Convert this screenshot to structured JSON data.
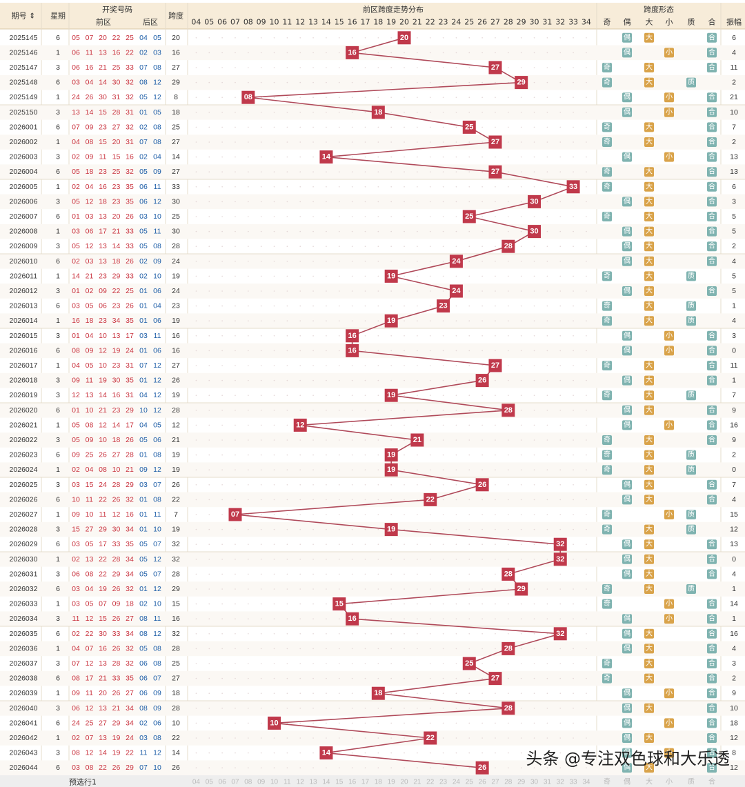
{
  "header": {
    "issue": "期号",
    "weekday": "星期",
    "draw": "开奖号码",
    "front": "前区",
    "back": "后区",
    "span": "跨度",
    "trend": "前区跨度走势分布",
    "form": "跨度形态",
    "form_cols": [
      "奇",
      "偶",
      "大",
      "小",
      "质",
      "合"
    ],
    "amplitude": "振幅"
  },
  "footer": {
    "label": "预选行1"
  },
  "watermark": "头条 @专注双色球和大乐透",
  "colors": {
    "node": "#c0394b",
    "line": "#b04a5a",
    "odd": "#7fb3b0",
    "even": "#7fb3b0",
    "big": "#d9a34a",
    "small": "#d9a34a",
    "prime": "#7fb3b0",
    "composite": "#7fb3b0"
  },
  "chart_data": {
    "type": "table",
    "span_columns": [
      "04",
      "05",
      "06",
      "07",
      "08",
      "09",
      "10",
      "11",
      "12",
      "13",
      "14",
      "15",
      "16",
      "17",
      "18",
      "19",
      "20",
      "21",
      "22",
      "23",
      "24",
      "25",
      "26",
      "27",
      "28",
      "29",
      "30",
      "31",
      "32",
      "33",
      "34"
    ],
    "rows": [
      {
        "issue": "2025145",
        "week": "6",
        "front": [
          "05",
          "07",
          "20",
          "22",
          "25"
        ],
        "back": [
          "04",
          "05"
        ],
        "span": 20,
        "amp": "6"
      },
      {
        "issue": "2025146",
        "week": "1",
        "front": [
          "06",
          "11",
          "13",
          "16",
          "22"
        ],
        "back": [
          "02",
          "03"
        ],
        "span": 16,
        "amp": "4"
      },
      {
        "issue": "2025147",
        "week": "3",
        "front": [
          "06",
          "16",
          "21",
          "25",
          "33"
        ],
        "back": [
          "07",
          "08"
        ],
        "span": 27,
        "amp": "11"
      },
      {
        "issue": "2025148",
        "week": "6",
        "front": [
          "03",
          "04",
          "14",
          "30",
          "32"
        ],
        "back": [
          "08",
          "12"
        ],
        "span": 29,
        "amp": "2"
      },
      {
        "issue": "2025149",
        "week": "1",
        "front": [
          "24",
          "26",
          "30",
          "31",
          "32"
        ],
        "back": [
          "05",
          "12"
        ],
        "span": 8,
        "amp": "21"
      },
      {
        "issue": "2025150",
        "week": "3",
        "front": [
          "13",
          "14",
          "15",
          "28",
          "31"
        ],
        "back": [
          "01",
          "05"
        ],
        "span": 18,
        "amp": "10"
      },
      {
        "issue": "2026001",
        "week": "6",
        "front": [
          "07",
          "09",
          "23",
          "27",
          "32"
        ],
        "back": [
          "02",
          "08"
        ],
        "span": 25,
        "amp": "7"
      },
      {
        "issue": "2026002",
        "week": "1",
        "front": [
          "04",
          "08",
          "15",
          "20",
          "31"
        ],
        "back": [
          "07",
          "08"
        ],
        "span": 27,
        "amp": "2"
      },
      {
        "issue": "2026003",
        "week": "3",
        "front": [
          "02",
          "09",
          "11",
          "15",
          "16"
        ],
        "back": [
          "02",
          "04"
        ],
        "span": 14,
        "amp": "13"
      },
      {
        "issue": "2026004",
        "week": "6",
        "front": [
          "05",
          "18",
          "23",
          "25",
          "32"
        ],
        "back": [
          "05",
          "09"
        ],
        "span": 27,
        "amp": "13"
      },
      {
        "issue": "2026005",
        "week": "1",
        "front": [
          "02",
          "04",
          "16",
          "23",
          "35"
        ],
        "back": [
          "06",
          "11"
        ],
        "span": 33,
        "amp": "6"
      },
      {
        "issue": "2026006",
        "week": "3",
        "front": [
          "05",
          "12",
          "18",
          "23",
          "35"
        ],
        "back": [
          "06",
          "12"
        ],
        "span": 30,
        "amp": "3"
      },
      {
        "issue": "2026007",
        "week": "6",
        "front": [
          "01",
          "03",
          "13",
          "20",
          "26"
        ],
        "back": [
          "03",
          "10"
        ],
        "span": 25,
        "amp": "5"
      },
      {
        "issue": "2026008",
        "week": "1",
        "front": [
          "03",
          "06",
          "17",
          "21",
          "33"
        ],
        "back": [
          "05",
          "11"
        ],
        "span": 30,
        "amp": "5"
      },
      {
        "issue": "2026009",
        "week": "3",
        "front": [
          "05",
          "12",
          "13",
          "14",
          "33"
        ],
        "back": [
          "05",
          "08"
        ],
        "span": 28,
        "amp": "2"
      },
      {
        "issue": "2026010",
        "week": "6",
        "front": [
          "02",
          "03",
          "13",
          "18",
          "26"
        ],
        "back": [
          "02",
          "09"
        ],
        "span": 24,
        "amp": "4"
      },
      {
        "issue": "2026011",
        "week": "1",
        "front": [
          "14",
          "21",
          "23",
          "29",
          "33"
        ],
        "back": [
          "02",
          "10"
        ],
        "span": 19,
        "amp": "5"
      },
      {
        "issue": "2026012",
        "week": "3",
        "front": [
          "01",
          "02",
          "09",
          "22",
          "25"
        ],
        "back": [
          "01",
          "06"
        ],
        "span": 24,
        "amp": "5"
      },
      {
        "issue": "2026013",
        "week": "6",
        "front": [
          "03",
          "05",
          "06",
          "23",
          "26"
        ],
        "back": [
          "01",
          "04"
        ],
        "span": 23,
        "amp": "1"
      },
      {
        "issue": "2026014",
        "week": "1",
        "front": [
          "16",
          "18",
          "23",
          "34",
          "35"
        ],
        "back": [
          "01",
          "06"
        ],
        "span": 19,
        "amp": "4"
      },
      {
        "issue": "2026015",
        "week": "3",
        "front": [
          "01",
          "04",
          "10",
          "13",
          "17"
        ],
        "back": [
          "03",
          "11"
        ],
        "span": 16,
        "amp": "3"
      },
      {
        "issue": "2026016",
        "week": "6",
        "front": [
          "08",
          "09",
          "12",
          "19",
          "24"
        ],
        "back": [
          "01",
          "06"
        ],
        "span": 16,
        "amp": "0"
      },
      {
        "issue": "2026017",
        "week": "1",
        "front": [
          "04",
          "05",
          "10",
          "23",
          "31"
        ],
        "back": [
          "07",
          "12"
        ],
        "span": 27,
        "amp": "11"
      },
      {
        "issue": "2026018",
        "week": "3",
        "front": [
          "09",
          "11",
          "19",
          "30",
          "35"
        ],
        "back": [
          "01",
          "12"
        ],
        "span": 26,
        "amp": "1"
      },
      {
        "issue": "2026019",
        "week": "3",
        "front": [
          "12",
          "13",
          "14",
          "16",
          "31"
        ],
        "back": [
          "04",
          "12"
        ],
        "span": 19,
        "amp": "7"
      },
      {
        "issue": "2026020",
        "week": "6",
        "front": [
          "01",
          "10",
          "21",
          "23",
          "29"
        ],
        "back": [
          "10",
          "12"
        ],
        "span": 28,
        "amp": "9"
      },
      {
        "issue": "2026021",
        "week": "1",
        "front": [
          "05",
          "08",
          "12",
          "14",
          "17"
        ],
        "back": [
          "04",
          "05"
        ],
        "span": 12,
        "amp": "16"
      },
      {
        "issue": "2026022",
        "week": "3",
        "front": [
          "05",
          "09",
          "10",
          "18",
          "26"
        ],
        "back": [
          "05",
          "06"
        ],
        "span": 21,
        "amp": "9"
      },
      {
        "issue": "2026023",
        "week": "6",
        "front": [
          "09",
          "25",
          "26",
          "27",
          "28"
        ],
        "back": [
          "01",
          "08"
        ],
        "span": 19,
        "amp": "2"
      },
      {
        "issue": "2026024",
        "week": "1",
        "front": [
          "02",
          "04",
          "08",
          "10",
          "21"
        ],
        "back": [
          "09",
          "12"
        ],
        "span": 19,
        "amp": "0"
      },
      {
        "issue": "2026025",
        "week": "3",
        "front": [
          "03",
          "15",
          "24",
          "28",
          "29"
        ],
        "back": [
          "03",
          "07"
        ],
        "span": 26,
        "amp": "7"
      },
      {
        "issue": "2026026",
        "week": "6",
        "front": [
          "10",
          "11",
          "22",
          "26",
          "32"
        ],
        "back": [
          "01",
          "08"
        ],
        "span": 22,
        "amp": "4"
      },
      {
        "issue": "2026027",
        "week": "1",
        "front": [
          "09",
          "10",
          "11",
          "12",
          "16"
        ],
        "back": [
          "01",
          "11"
        ],
        "span": 7,
        "amp": "15"
      },
      {
        "issue": "2026028",
        "week": "3",
        "front": [
          "15",
          "27",
          "29",
          "30",
          "34"
        ],
        "back": [
          "01",
          "10"
        ],
        "span": 19,
        "amp": "12"
      },
      {
        "issue": "2026029",
        "week": "6",
        "front": [
          "03",
          "05",
          "17",
          "33",
          "35"
        ],
        "back": [
          "05",
          "07"
        ],
        "span": 32,
        "amp": "13"
      },
      {
        "issue": "2026030",
        "week": "1",
        "front": [
          "02",
          "13",
          "22",
          "28",
          "34"
        ],
        "back": [
          "05",
          "12"
        ],
        "span": 32,
        "amp": "0"
      },
      {
        "issue": "2026031",
        "week": "3",
        "front": [
          "06",
          "08",
          "22",
          "29",
          "34"
        ],
        "back": [
          "05",
          "07"
        ],
        "span": 28,
        "amp": "4"
      },
      {
        "issue": "2026032",
        "week": "6",
        "front": [
          "03",
          "04",
          "19",
          "26",
          "32"
        ],
        "back": [
          "01",
          "12"
        ],
        "span": 29,
        "amp": "1"
      },
      {
        "issue": "2026033",
        "week": "1",
        "front": [
          "03",
          "05",
          "07",
          "09",
          "18"
        ],
        "back": [
          "02",
          "10"
        ],
        "span": 15,
        "amp": "14"
      },
      {
        "issue": "2026034",
        "week": "3",
        "front": [
          "11",
          "12",
          "15",
          "26",
          "27"
        ],
        "back": [
          "08",
          "11"
        ],
        "span": 16,
        "amp": "1"
      },
      {
        "issue": "2026035",
        "week": "6",
        "front": [
          "02",
          "22",
          "30",
          "33",
          "34"
        ],
        "back": [
          "08",
          "12"
        ],
        "span": 32,
        "amp": "16"
      },
      {
        "issue": "2026036",
        "week": "1",
        "front": [
          "04",
          "07",
          "16",
          "26",
          "32"
        ],
        "back": [
          "05",
          "08"
        ],
        "span": 28,
        "amp": "4"
      },
      {
        "issue": "2026037",
        "week": "3",
        "front": [
          "07",
          "12",
          "13",
          "28",
          "32"
        ],
        "back": [
          "06",
          "08"
        ],
        "span": 25,
        "amp": "3"
      },
      {
        "issue": "2026038",
        "week": "6",
        "front": [
          "08",
          "17",
          "21",
          "33",
          "35"
        ],
        "back": [
          "06",
          "07"
        ],
        "span": 27,
        "amp": "2"
      },
      {
        "issue": "2026039",
        "week": "1",
        "front": [
          "09",
          "11",
          "20",
          "26",
          "27"
        ],
        "back": [
          "06",
          "09"
        ],
        "span": 18,
        "amp": "9"
      },
      {
        "issue": "2026040",
        "week": "3",
        "front": [
          "06",
          "12",
          "13",
          "21",
          "34"
        ],
        "back": [
          "08",
          "09"
        ],
        "span": 28,
        "amp": "10"
      },
      {
        "issue": "2026041",
        "week": "6",
        "front": [
          "24",
          "25",
          "27",
          "29",
          "34"
        ],
        "back": [
          "02",
          "06"
        ],
        "span": 10,
        "amp": "18"
      },
      {
        "issue": "2026042",
        "week": "1",
        "front": [
          "02",
          "07",
          "13",
          "19",
          "24"
        ],
        "back": [
          "03",
          "08"
        ],
        "span": 22,
        "amp": "12"
      },
      {
        "issue": "2026043",
        "week": "3",
        "front": [
          "08",
          "12",
          "14",
          "19",
          "22"
        ],
        "back": [
          "11",
          "12"
        ],
        "span": 14,
        "amp": "8"
      },
      {
        "issue": "2026044",
        "week": "6",
        "front": [
          "03",
          "08",
          "22",
          "26",
          "29"
        ],
        "back": [
          "07",
          "10"
        ],
        "span": 26,
        "amp": "12"
      }
    ]
  }
}
